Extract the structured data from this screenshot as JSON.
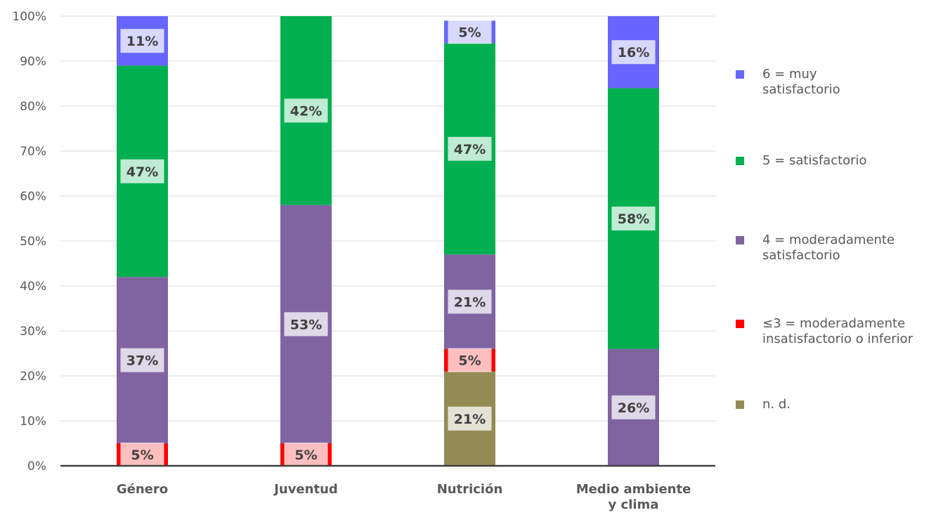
{
  "chart_data": {
    "type": "bar",
    "stacked": true,
    "categories": [
      "Género",
      "Juventud",
      "Nutrición",
      "Medio ambiente y clima"
    ],
    "ylim": [
      0,
      100
    ],
    "y_ticks": [
      "0%",
      "10%",
      "20%",
      "30%",
      "40%",
      "50%",
      "60%",
      "70%",
      "80%",
      "90%",
      "100%"
    ],
    "grid": true,
    "legend_position": "right",
    "series": [
      {
        "name": "n. d.",
        "color": "#948A54",
        "values": [
          0,
          0,
          21,
          0
        ],
        "labels": [
          "",
          "",
          "21%",
          ""
        ]
      },
      {
        "name": "≤3 = moderadamente insatisfactorio o inferior",
        "color": "#FF0000",
        "values": [
          5,
          5,
          5,
          0
        ],
        "labels": [
          "5%",
          "5%",
          "5%",
          ""
        ]
      },
      {
        "name": "4 = moderadamente satisfactorio",
        "color": "#8064A2",
        "values": [
          37,
          53,
          21,
          26
        ],
        "labels": [
          "37%",
          "53%",
          "21%",
          "26%"
        ]
      },
      {
        "name": "5 = satisfactorio",
        "color": "#00B050",
        "values": [
          47,
          42,
          47,
          58
        ],
        "labels": [
          "47%",
          "42%",
          "47%",
          "58%"
        ]
      },
      {
        "name": "6 = muy satisfactorio",
        "color": "#6666FF",
        "values": [
          11,
          0,
          5,
          16
        ],
        "labels": [
          "11%",
          "",
          "5%",
          "16%"
        ]
      }
    ]
  },
  "legend": [
    {
      "line1": "6 = muy",
      "line2": "satisfactorio",
      "color": "#6666FF"
    },
    {
      "line1": "5 = satisfactorio",
      "line2": "",
      "color": "#00B050"
    },
    {
      "line1": "4 = moderadamente",
      "line2": "satisfactorio",
      "color": "#8064A2"
    },
    {
      "line1": "≤3 = moderadamente",
      "line2": "insatisfactorio o inferior",
      "color": "#FF0000"
    },
    {
      "line1": "n. d.",
      "line2": "",
      "color": "#948A54"
    }
  ]
}
